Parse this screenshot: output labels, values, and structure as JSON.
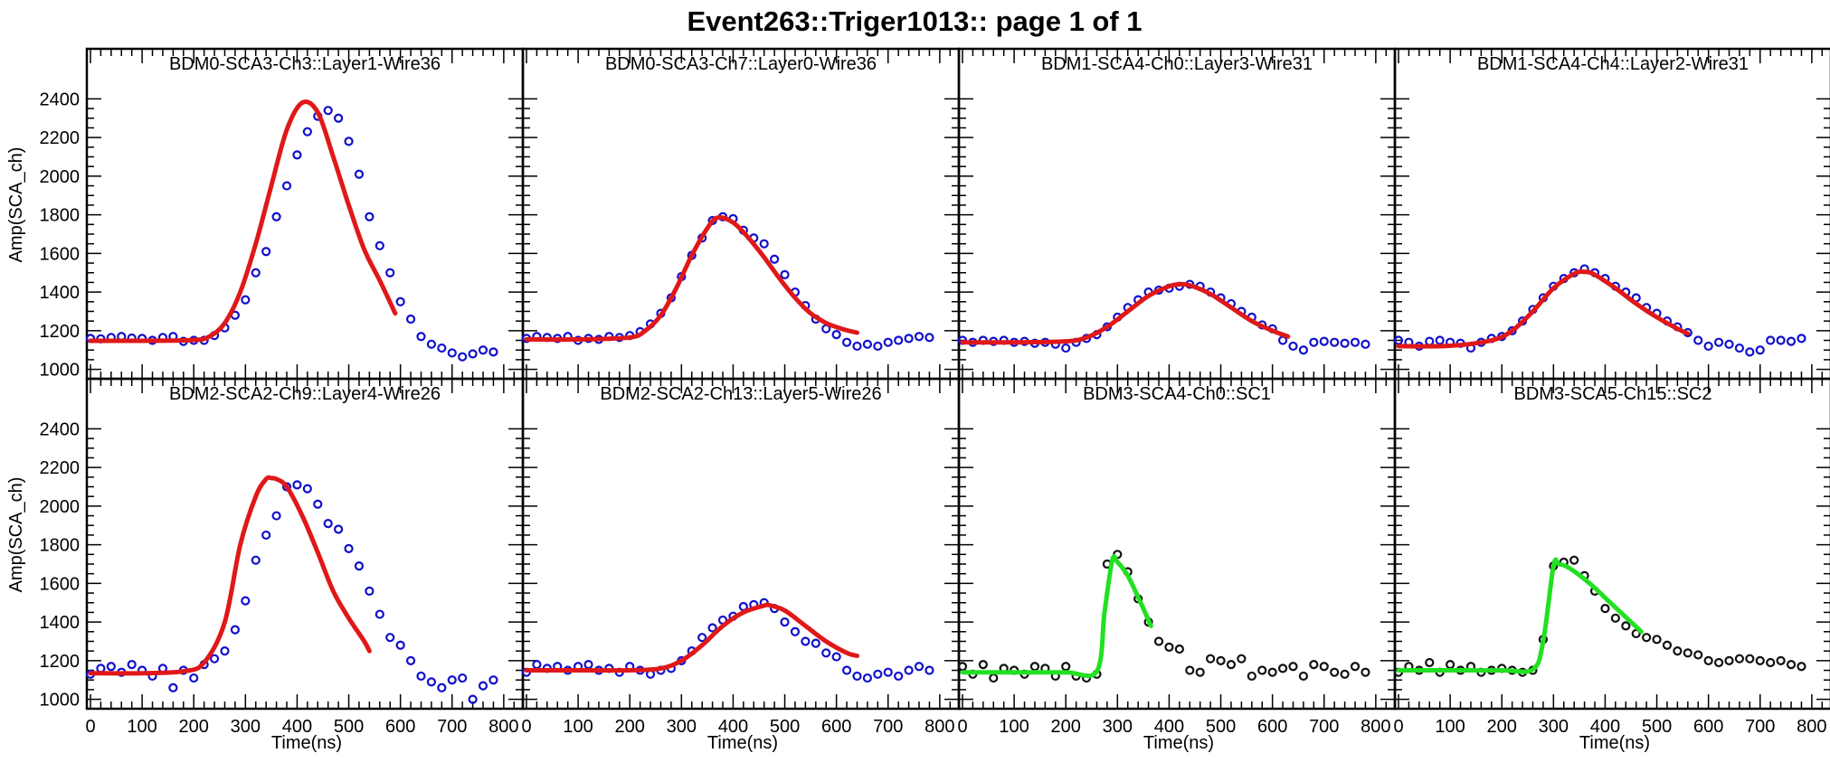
{
  "page_title": "Event263::Triger1013:: page 1 of 1",
  "colors": {
    "blue_markers": "#1010cc",
    "black_markers": "#111111",
    "red_fit": "#e01818",
    "green_fit": "#22e022"
  },
  "chart_data": [
    {
      "type": "scatter",
      "title": "BDM0-SCA3-Ch3::Layer1-Wire36",
      "xlabel": "",
      "ylabel": "Amp(SCA_ch)",
      "xlim": [
        0,
        830
      ],
      "ylim": [
        970,
        2500
      ],
      "marker_color": "#1010cc",
      "fit_color": "#e01818",
      "series": [
        {
          "name": "data",
          "x": [
            0,
            20,
            40,
            60,
            80,
            100,
            120,
            140,
            160,
            180,
            200,
            220,
            240,
            260,
            280,
            300,
            320,
            340,
            360,
            380,
            400,
            420,
            440,
            460,
            480,
            500,
            520,
            540,
            560,
            580,
            600,
            620,
            640,
            660,
            680,
            700,
            720,
            740,
            760,
            780
          ],
          "values": [
            1160,
            1158,
            1165,
            1170,
            1162,
            1160,
            1150,
            1165,
            1170,
            1145,
            1150,
            1150,
            1175,
            1215,
            1280,
            1360,
            1500,
            1610,
            1790,
            1950,
            2110,
            2230,
            2310,
            2340,
            2300,
            2180,
            2010,
            1790,
            1640,
            1500,
            1350,
            1260,
            1170,
            1130,
            1110,
            1085,
            1065,
            1080,
            1100,
            1090
          ]
        },
        {
          "name": "fit",
          "x": [
            0,
            100,
            200,
            230,
            260,
            290,
            320,
            350,
            380,
            410,
            440,
            470,
            500,
            530,
            560,
            590
          ],
          "values": [
            1148,
            1148,
            1152,
            1170,
            1240,
            1400,
            1650,
            1950,
            2240,
            2380,
            2330,
            2100,
            1850,
            1620,
            1460,
            1290
          ]
        }
      ]
    },
    {
      "type": "scatter",
      "title": "BDM0-SCA3-Ch7::Layer0-Wire36",
      "xlabel": "",
      "ylabel": "",
      "xlim": [
        0,
        830
      ],
      "ylim": [
        970,
        2500
      ],
      "marker_color": "#1010cc",
      "fit_color": "#e01818",
      "series": [
        {
          "name": "data",
          "x": [
            0,
            20,
            40,
            60,
            80,
            100,
            120,
            140,
            160,
            180,
            200,
            220,
            240,
            260,
            280,
            300,
            320,
            340,
            360,
            380,
            400,
            420,
            440,
            460,
            480,
            500,
            520,
            540,
            560,
            580,
            600,
            620,
            640,
            660,
            680,
            700,
            720,
            740,
            760,
            780
          ],
          "values": [
            1160,
            1170,
            1165,
            1160,
            1170,
            1150,
            1160,
            1155,
            1170,
            1165,
            1175,
            1195,
            1235,
            1290,
            1370,
            1480,
            1590,
            1680,
            1770,
            1790,
            1780,
            1720,
            1680,
            1650,
            1570,
            1490,
            1400,
            1330,
            1260,
            1210,
            1180,
            1140,
            1120,
            1130,
            1120,
            1140,
            1150,
            1160,
            1170,
            1165
          ]
        },
        {
          "name": "fit",
          "x": [
            0,
            100,
            200,
            230,
            260,
            290,
            320,
            350,
            370,
            400,
            430,
            460,
            490,
            520,
            550,
            580,
            610,
            640
          ],
          "values": [
            1155,
            1155,
            1165,
            1200,
            1280,
            1420,
            1590,
            1730,
            1785,
            1760,
            1680,
            1580,
            1470,
            1370,
            1290,
            1240,
            1210,
            1190
          ]
        }
      ]
    },
    {
      "type": "scatter",
      "title": "BDM1-SCA4-Ch0::Layer3-Wire31",
      "xlabel": "",
      "ylabel": "",
      "xlim": [
        0,
        830
      ],
      "ylim": [
        970,
        2500
      ],
      "marker_color": "#1010cc",
      "fit_color": "#e01818",
      "series": [
        {
          "name": "data",
          "x": [
            0,
            20,
            40,
            60,
            80,
            100,
            120,
            140,
            160,
            180,
            200,
            220,
            240,
            260,
            280,
            300,
            320,
            340,
            360,
            380,
            400,
            420,
            440,
            460,
            480,
            500,
            520,
            540,
            560,
            580,
            600,
            620,
            640,
            660,
            680,
            700,
            720,
            740,
            760,
            780
          ],
          "values": [
            1150,
            1140,
            1150,
            1145,
            1150,
            1140,
            1145,
            1135,
            1140,
            1130,
            1110,
            1140,
            1160,
            1180,
            1220,
            1270,
            1320,
            1360,
            1400,
            1410,
            1420,
            1430,
            1440,
            1430,
            1400,
            1370,
            1340,
            1300,
            1270,
            1230,
            1210,
            1150,
            1120,
            1100,
            1140,
            1145,
            1140,
            1135,
            1140,
            1130
          ]
        },
        {
          "name": "fit",
          "x": [
            0,
            100,
            200,
            240,
            280,
            320,
            360,
            400,
            420,
            440,
            480,
            520,
            560,
            600,
            630
          ],
          "values": [
            1140,
            1140,
            1145,
            1165,
            1220,
            1300,
            1380,
            1430,
            1440,
            1435,
            1390,
            1320,
            1250,
            1200,
            1170
          ]
        }
      ]
    },
    {
      "type": "scatter",
      "title": "BDM1-SCA4-Ch4::Layer2-Wire31",
      "xlabel": "",
      "ylabel": "",
      "xlim": [
        0,
        830
      ],
      "ylim": [
        970,
        2500
      ],
      "marker_color": "#1010cc",
      "fit_color": "#e01818",
      "series": [
        {
          "name": "data",
          "x": [
            0,
            20,
            40,
            60,
            80,
            100,
            120,
            140,
            160,
            180,
            200,
            220,
            240,
            260,
            280,
            300,
            320,
            340,
            360,
            380,
            400,
            420,
            440,
            460,
            480,
            500,
            520,
            540,
            560,
            580,
            600,
            620,
            640,
            660,
            680,
            700,
            720,
            740,
            760,
            780
          ],
          "values": [
            1150,
            1140,
            1120,
            1145,
            1150,
            1140,
            1135,
            1110,
            1140,
            1160,
            1170,
            1200,
            1250,
            1310,
            1370,
            1430,
            1470,
            1500,
            1520,
            1500,
            1470,
            1430,
            1400,
            1370,
            1320,
            1290,
            1250,
            1220,
            1190,
            1150,
            1120,
            1140,
            1130,
            1110,
            1090,
            1100,
            1150,
            1150,
            1145,
            1160
          ]
        },
        {
          "name": "fit",
          "x": [
            0,
            100,
            180,
            220,
            260,
            300,
            340,
            360,
            380,
            420,
            460,
            500,
            540,
            560
          ],
          "values": [
            1120,
            1122,
            1150,
            1200,
            1300,
            1420,
            1495,
            1505,
            1490,
            1420,
            1340,
            1270,
            1210,
            1185
          ]
        }
      ]
    },
    {
      "type": "scatter",
      "title": "BDM2-SCA2-Ch9::Layer4-Wire26",
      "xlabel": "Time(ns)",
      "ylabel": "Amp(SCA_ch)",
      "xlim": [
        0,
        830
      ],
      "ylim": [
        970,
        2500
      ],
      "marker_color": "#1010cc",
      "fit_color": "#e01818",
      "series": [
        {
          "name": "data",
          "x": [
            0,
            20,
            40,
            60,
            80,
            100,
            120,
            140,
            160,
            180,
            200,
            220,
            240,
            260,
            280,
            300,
            320,
            340,
            360,
            380,
            400,
            420,
            440,
            460,
            480,
            500,
            520,
            540,
            560,
            580,
            600,
            620,
            640,
            660,
            680,
            700,
            720,
            740,
            760,
            780
          ],
          "values": [
            1130,
            1160,
            1170,
            1140,
            1180,
            1150,
            1120,
            1160,
            1060,
            1150,
            1110,
            1180,
            1210,
            1250,
            1360,
            1510,
            1720,
            1850,
            1950,
            2100,
            2110,
            2090,
            2010,
            1910,
            1880,
            1780,
            1690,
            1560,
            1440,
            1320,
            1280,
            1200,
            1120,
            1090,
            1060,
            1100,
            1110,
            1000,
            1070,
            1100
          ]
        },
        {
          "name": "fit",
          "x": [
            0,
            100,
            180,
            220,
            260,
            290,
            320,
            340,
            350,
            360,
            380,
            410,
            440,
            470,
            500,
            530,
            540
          ],
          "values": [
            1135,
            1135,
            1145,
            1190,
            1400,
            1800,
            2050,
            2140,
            2145,
            2140,
            2100,
            1950,
            1760,
            1560,
            1420,
            1300,
            1250
          ]
        }
      ]
    },
    {
      "type": "scatter",
      "title": "BDM2-SCA2-Ch13::Layer5-Wire26",
      "xlabel": "Time(ns)",
      "ylabel": "",
      "xlim": [
        0,
        830
      ],
      "ylim": [
        970,
        2500
      ],
      "marker_color": "#1010cc",
      "fit_color": "#e01818",
      "series": [
        {
          "name": "data",
          "x": [
            0,
            20,
            40,
            60,
            80,
            100,
            120,
            140,
            160,
            180,
            200,
            220,
            240,
            260,
            280,
            300,
            320,
            340,
            360,
            380,
            400,
            420,
            440,
            460,
            480,
            500,
            520,
            540,
            560,
            580,
            600,
            620,
            640,
            660,
            680,
            700,
            720,
            740,
            760,
            780
          ],
          "values": [
            1140,
            1180,
            1160,
            1170,
            1150,
            1170,
            1180,
            1150,
            1160,
            1140,
            1170,
            1150,
            1130,
            1150,
            1160,
            1200,
            1250,
            1320,
            1370,
            1410,
            1430,
            1480,
            1490,
            1500,
            1470,
            1400,
            1350,
            1300,
            1290,
            1240,
            1220,
            1150,
            1120,
            1110,
            1130,
            1140,
            1120,
            1150,
            1170,
            1150
          ]
        },
        {
          "name": "fit",
          "x": [
            0,
            100,
            200,
            260,
            300,
            340,
            380,
            420,
            460,
            470,
            500,
            540,
            580,
            620,
            640
          ],
          "values": [
            1150,
            1150,
            1150,
            1160,
            1200,
            1280,
            1380,
            1450,
            1485,
            1487,
            1460,
            1380,
            1300,
            1240,
            1225
          ]
        }
      ]
    },
    {
      "type": "scatter",
      "title": "BDM3-SCA4-Ch0::SC1",
      "xlabel": "Time(ns)",
      "ylabel": "",
      "xlim": [
        0,
        830
      ],
      "ylim": [
        970,
        2500
      ],
      "marker_color": "#111111",
      "fit_color": "#22e022",
      "series": [
        {
          "name": "data",
          "x": [
            0,
            20,
            40,
            60,
            80,
            100,
            120,
            140,
            160,
            180,
            200,
            220,
            240,
            260,
            280,
            300,
            320,
            340,
            360,
            380,
            400,
            420,
            440,
            460,
            480,
            500,
            520,
            540,
            560,
            580,
            600,
            620,
            640,
            660,
            680,
            700,
            720,
            740,
            760,
            780
          ],
          "values": [
            1170,
            1130,
            1180,
            1110,
            1160,
            1150,
            1130,
            1170,
            1160,
            1120,
            1170,
            1120,
            1110,
            1130,
            1700,
            1750,
            1660,
            1520,
            1400,
            1300,
            1270,
            1260,
            1150,
            1140,
            1210,
            1200,
            1180,
            1210,
            1120,
            1150,
            1140,
            1160,
            1170,
            1120,
            1180,
            1170,
            1140,
            1130,
            1170,
            1140
          ]
        },
        {
          "name": "fit",
          "x": [
            0,
            100,
            200,
            260,
            275,
            290,
            300,
            320,
            345,
            365
          ],
          "values": [
            1140,
            1140,
            1140,
            1145,
            1450,
            1720,
            1710,
            1640,
            1500,
            1380
          ]
        }
      ]
    },
    {
      "type": "scatter",
      "title": "BDM3-SCA5-Ch15::SC2",
      "xlabel": "Time(ns)",
      "ylabel": "",
      "xlim": [
        0,
        830
      ],
      "ylim": [
        970,
        2500
      ],
      "marker_color": "#111111",
      "fit_color": "#22e022",
      "series": [
        {
          "name": "data",
          "x": [
            0,
            20,
            40,
            60,
            80,
            100,
            120,
            140,
            160,
            180,
            200,
            220,
            240,
            260,
            280,
            300,
            320,
            340,
            360,
            380,
            400,
            420,
            440,
            460,
            480,
            500,
            520,
            540,
            560,
            580,
            600,
            620,
            640,
            660,
            680,
            700,
            720,
            740,
            760,
            780
          ],
          "values": [
            1140,
            1170,
            1150,
            1190,
            1140,
            1180,
            1150,
            1170,
            1140,
            1150,
            1160,
            1150,
            1140,
            1150,
            1310,
            1690,
            1710,
            1720,
            1640,
            1560,
            1470,
            1420,
            1380,
            1340,
            1320,
            1310,
            1280,
            1250,
            1240,
            1230,
            1200,
            1190,
            1200,
            1210,
            1210,
            1200,
            1190,
            1200,
            1180,
            1170
          ]
        },
        {
          "name": "fit",
          "x": [
            0,
            100,
            200,
            260,
            280,
            300,
            310,
            330,
            370,
            410,
            450,
            470
          ],
          "values": [
            1150,
            1150,
            1150,
            1155,
            1300,
            1690,
            1700,
            1680,
            1600,
            1500,
            1400,
            1350
          ]
        }
      ]
    }
  ]
}
